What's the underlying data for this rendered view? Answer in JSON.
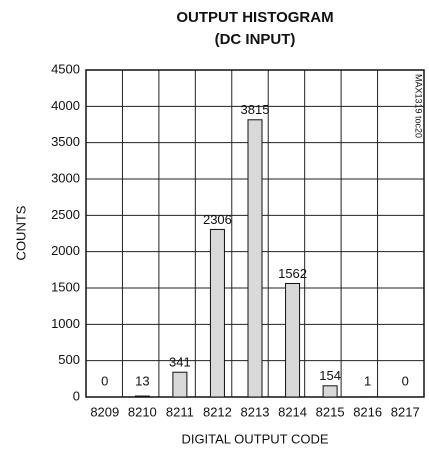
{
  "chart_data": {
    "type": "bar",
    "title": "OUTPUT HISTOGRAM",
    "subtitle": "(DC INPUT)",
    "annotation": "MAX1319 toc20",
    "x_label": "DIGITAL OUTPUT CODE",
    "y_label": "COUNTS",
    "categories": [
      "8209",
      "8210",
      "8211",
      "8212",
      "8213",
      "8214",
      "8215",
      "8216",
      "8217"
    ],
    "values": [
      0,
      13,
      341,
      2306,
      3815,
      1562,
      154,
      1,
      0
    ],
    "color": "#d9d9d9",
    "ylim": [
      0,
      4500
    ],
    "yticks": [
      0,
      500,
      1000,
      1500,
      2000,
      2500,
      3000,
      3500,
      4000,
      4500
    ],
    "grid": true
  }
}
